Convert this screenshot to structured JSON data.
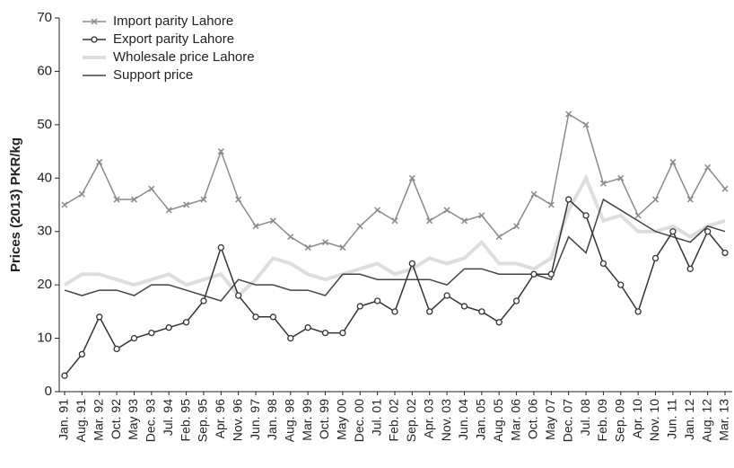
{
  "chart_data": {
    "type": "line",
    "y_label": "Prices (2013) PKR/kg",
    "categories": [
      "Jan. 91",
      "Aug. 91",
      "Mar. 92",
      "Oct. 92",
      "May 93",
      "Dec. 93",
      "Jul. 94",
      "Feb. 95",
      "Sep. 95",
      "Apr. 96",
      "Nov. 96",
      "Jun. 97",
      "Jan. 98",
      "Aug. 98",
      "Mar. 99",
      "Oct. 99",
      "May 00",
      "Dec. 00",
      "Jul. 01",
      "Feb. 02",
      "Sep. 02",
      "Apr. 03",
      "Nov. 03",
      "Jun. 04",
      "Jan. 05",
      "Aug. 05",
      "Mar. 06",
      "Oct. 06",
      "May 07",
      "Dec. 07",
      "Jul. 08",
      "Feb. 09",
      "Sep. 09",
      "Apr. 10",
      "Nov. 10",
      "Jun. 11",
      "Jan. 12",
      "Aug. 12",
      "Mar. 13"
    ],
    "series": [
      {
        "name": "Import parity Lahore",
        "color": "#8a8a8a",
        "marker": "x",
        "values": [
          35,
          37,
          43,
          36,
          36,
          38,
          34,
          35,
          36,
          45,
          36,
          31,
          32,
          29,
          27,
          28,
          27,
          31,
          34,
          32,
          40,
          32,
          34,
          32,
          33,
          29,
          31,
          37,
          35,
          52,
          50,
          39,
          40,
          33,
          36,
          43,
          36,
          42,
          38
        ]
      },
      {
        "name": "Export parity Lahore",
        "color": "#333333",
        "marker": "circle",
        "values": [
          3,
          7,
          14,
          8,
          10,
          11,
          12,
          13,
          17,
          27,
          18,
          14,
          14,
          10,
          12,
          11,
          11,
          16,
          17,
          15,
          24,
          15,
          18,
          16,
          15,
          13,
          17,
          22,
          22,
          36,
          33,
          24,
          20,
          15,
          25,
          30,
          23,
          30,
          26
        ]
      },
      {
        "name": "Wholesale price Lahore",
        "color": "#dddddd",
        "marker": "none",
        "values": [
          20,
          22,
          22,
          21,
          20,
          21,
          22,
          20,
          21,
          22,
          18,
          21,
          25,
          24,
          22,
          21,
          22,
          23,
          24,
          22,
          23,
          25,
          24,
          25,
          28,
          24,
          24,
          23,
          25,
          34,
          40,
          32,
          33,
          30,
          30,
          31,
          29,
          31,
          32
        ]
      },
      {
        "name": "Support price",
        "color": "#444444",
        "marker": "none",
        "values": [
          19,
          18,
          19,
          19,
          18,
          20,
          20,
          19,
          18,
          17,
          21,
          20,
          20,
          19,
          19,
          18,
          22,
          22,
          21,
          21,
          21,
          21,
          20,
          23,
          23,
          22,
          22,
          22,
          21,
          29,
          26,
          36,
          34,
          32,
          30,
          29,
          28,
          31,
          30
        ]
      }
    ],
    "ylim": [
      0,
      70
    ],
    "yticks": [
      0,
      10,
      20,
      30,
      40,
      50,
      60,
      70
    ]
  }
}
